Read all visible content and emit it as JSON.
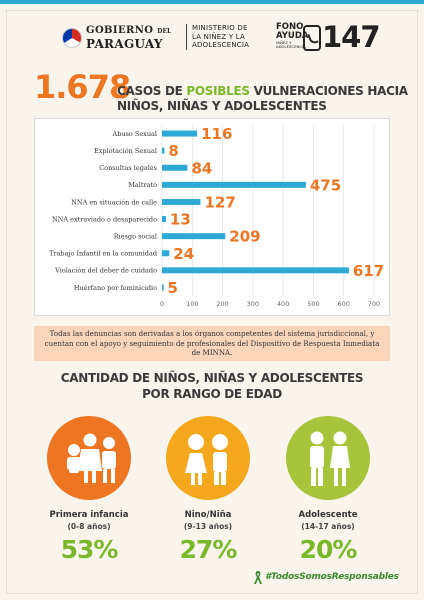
{
  "header": {
    "gov_line1": "GOBIERNO",
    "gov_line1_del": "DEL",
    "gov_line2": "PARAGUAY",
    "ministry_l1": "MINISTERIO DE",
    "ministry_l2": "LA NIÑEZ Y LA",
    "ministry_l3": "ADOLESCENCIA",
    "fono_l1": "FONO",
    "fono_l2": "AYUDA",
    "fono_l3": "NIÑEZ Y",
    "fono_l4": "ADOLESCENCIA",
    "number": "147"
  },
  "title": {
    "total": "1.678",
    "part1": "CASOS DE ",
    "highlight": "POSIBLES",
    "part2": " VULNERACIONES HACIA",
    "line2": "NIÑOS, NIÑAS Y ADOLESCENTES"
  },
  "chart_data": {
    "type": "bar",
    "orientation": "horizontal",
    "categories": [
      "Abuso Sexual",
      "Explotación Sexual",
      "Consultas legales",
      "Maltrato",
      "NNA en situación de calle",
      "NNA extraviado o desaparecido",
      "Riesgo social",
      "Trabajo Infantil en la comunidad",
      "Violación del deber de cuidado",
      "Huérfano por feminicidio"
    ],
    "values": [
      116,
      8,
      84,
      475,
      127,
      13,
      209,
      24,
      617,
      5
    ],
    "xlim": [
      0,
      700
    ],
    "xticks": [
      0,
      100,
      200,
      300,
      400,
      500,
      600,
      700
    ],
    "grid": true,
    "colors": {
      "bar": "#2ea9d6",
      "label": "#ee7623"
    }
  },
  "note": "Todas las denuncias son derivadas a los órganos competentes del sistema jurisdiccional, y cuentan con el apoyo y seguimiento de profesionales del Dispositivo de Respuesta Inmediata de MINNA.",
  "age_section": {
    "title_l1": "CANTIDAD DE NIÑOS, NIÑAS Y ADOLESCENTES",
    "title_l2": "POR RANGO DE EDAD",
    "groups": [
      {
        "label": "Primera infancia",
        "range": "(0-8 años)",
        "pct": "53%",
        "color": "#ee7623",
        "icon": "family-icon"
      },
      {
        "label": "Nino/Niña",
        "range": "(9-13 años)",
        "pct": "27%",
        "color": "#f5a81c",
        "icon": "children-icon"
      },
      {
        "label": "Adolescente",
        "range": "(14-17 años)",
        "pct": "20%",
        "color": "#a7c43b",
        "icon": "teens-icon"
      }
    ]
  },
  "hashtag": "#TodosSomosResponsables",
  "colors": {
    "accent_orange": "#ee7623",
    "accent_green": "#7ab829",
    "accent_blue": "#2ea9d6"
  }
}
